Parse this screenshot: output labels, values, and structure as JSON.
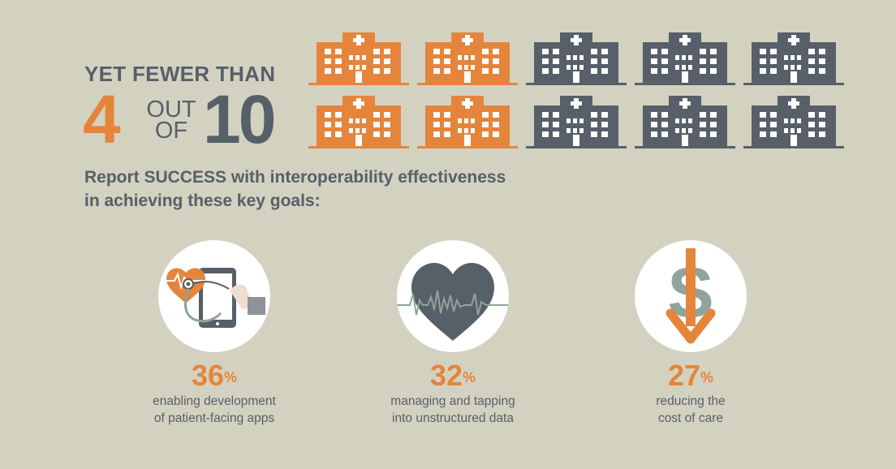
{
  "headline": "YET FEWER THAN",
  "ratio": {
    "numerator": "4",
    "out": "OUT",
    "of": "OF",
    "denominator": "10"
  },
  "hospitals": {
    "total": 10,
    "highlighted": 4,
    "colors": {
      "highlighted": "#e5853c",
      "other": "#575f68"
    },
    "icon": "hospital-building-icon"
  },
  "subhead": {
    "line1": "Report SUCCESS with interoperability effectiveness",
    "line2": "in achieving these key goals:"
  },
  "goals": [
    {
      "value": "36",
      "unit": "%",
      "line1": "enabling development",
      "line2": "of patient-facing apps",
      "icon": "tablet-stethoscope-heart-icon"
    },
    {
      "value": "32",
      "unit": "%",
      "line1": "managing and tapping",
      "line2": "into unstructured data",
      "icon": "heart-heartbeat-icon"
    },
    {
      "value": "27",
      "unit": "%",
      "line1": "reducing the",
      "line2": "cost of care",
      "icon": "dollar-down-arrow-icon"
    }
  ],
  "colors": {
    "background": "#d3d2c1",
    "accent": "#e5853c",
    "dark": "#575f68",
    "muted": "#8ea49c"
  }
}
